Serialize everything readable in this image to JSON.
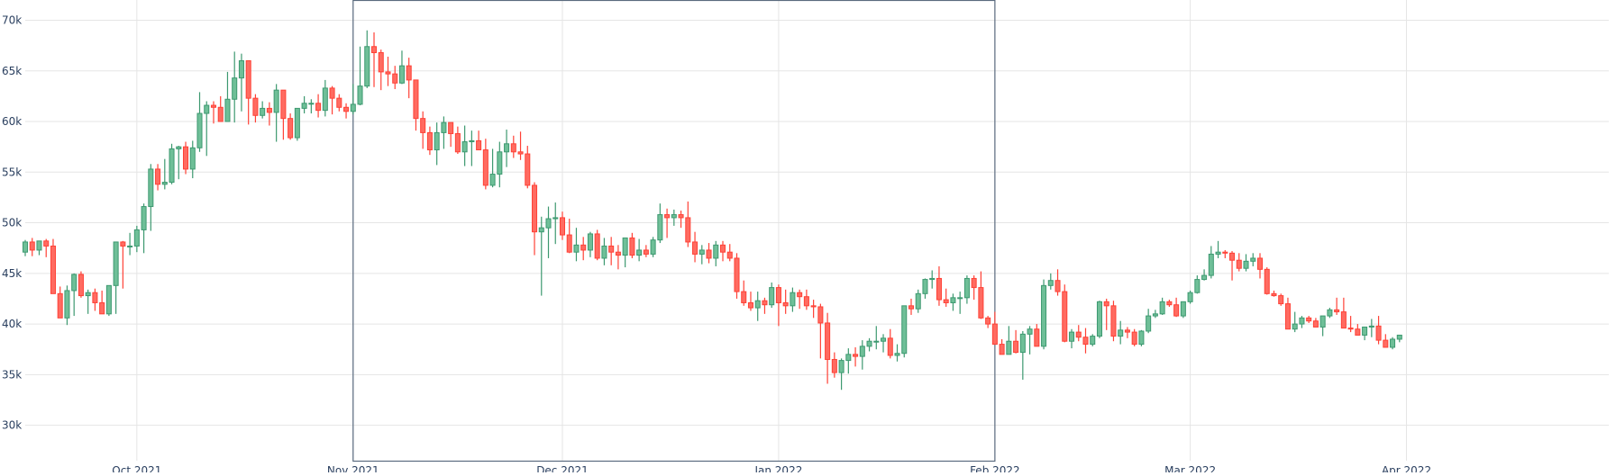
{
  "chart_data": {
    "type": "candlestick",
    "title": "",
    "xlabel": "",
    "ylabel": "",
    "x_range": [
      "2021-09-15",
      "2022-04-30"
    ],
    "ylim": [
      26500,
      72000
    ],
    "yticks": [
      30000,
      35000,
      40000,
      45000,
      50000,
      55000,
      60000,
      65000,
      70000
    ],
    "ytick_labels": [
      "30k",
      "35k",
      "40k",
      "45k",
      "50k",
      "55k",
      "60k",
      "65k",
      "70k"
    ],
    "xticks": [
      "2021-10-01",
      "2021-11-01",
      "2021-12-01",
      "2022-01-01",
      "2022-02-01",
      "2022-03-01",
      "2022-04-01"
    ],
    "xtick_labels": [
      "Oct 2021",
      "Nov 2021",
      "Dec 2021",
      "Jan 2022",
      "Feb 2022",
      "Mar 2022",
      "Apr 2022"
    ],
    "grid": true,
    "legend": false,
    "colors": {
      "increasing": "#3d9970",
      "decreasing": "#ff4136",
      "grid": "#e5e5e5",
      "highlight": "#5b6b7f"
    },
    "highlight_range": [
      "2021-11-01",
      "2022-02-01"
    ],
    "candles": {
      "start": "2021-09-15",
      "open": [
        47100,
        48100,
        47300,
        48200,
        47700,
        43000,
        40600,
        43300,
        44900,
        42800,
        43100,
        42100,
        41000,
        43800,
        48100,
        47700,
        47700,
        49300,
        51600,
        55300,
        53800,
        54000,
        57300,
        57500,
        55300,
        57400,
        60800,
        61600,
        61400,
        60000,
        62200,
        64300,
        66000,
        62300,
        60600,
        61300,
        60900,
        63100,
        60300,
        58400,
        61300,
        61800,
        61800,
        61100,
        63300,
        62300,
        61400,
        61000,
        61700,
        63500,
        67400,
        66800,
        64900,
        64700,
        63800,
        65500,
        64100,
        60300,
        58900,
        57200,
        58900,
        59900,
        58800,
        57000,
        58000,
        58100,
        57200,
        53700,
        54800,
        57000,
        57800,
        57000,
        56800,
        53700,
        49100,
        49500,
        50400,
        50500,
        48800,
        47100,
        47800,
        47300,
        48900,
        46500,
        47700,
        47100,
        46800,
        48500,
        46800,
        47300,
        46900,
        48300,
        50800,
        50500,
        50800,
        50500,
        48100,
        46900,
        47300,
        46500,
        47800,
        47100,
        46500,
        43200,
        42100,
        41600,
        42300,
        41900,
        43600,
        42100,
        41800,
        43100,
        42700,
        41800,
        41700,
        40100,
        36500,
        35200,
        36400,
        37000,
        36800,
        37800,
        38300,
        38300,
        38600,
        36900,
        37100,
        41800,
        41500,
        43000,
        44400,
        44500,
        42400,
        42100,
        42600,
        42600,
        44500,
        43600,
        40600,
        40000,
        38000,
        37000,
        38300,
        37200,
        39000,
        39500,
        37800,
        43800,
        44300,
        43200,
        38300,
        39200,
        38700,
        38000,
        38800,
        42200,
        41800,
        38800,
        39400,
        39200,
        38000,
        39300,
        40800,
        41000,
        42200,
        41900,
        40800,
        42200,
        43100,
        44400,
        44800,
        46900,
        47100,
        47000,
        46300,
        45500,
        46200,
        46500,
        45400,
        43000,
        42800,
        42000,
        39500,
        40000,
        40600,
        40300,
        39700,
        40800,
        41400,
        41200,
        39600,
        39500,
        38900,
        39700,
        39800,
        38400,
        37700,
        38500
      ],
      "high": [
        48300,
        48500,
        48000,
        48400,
        48400,
        43700,
        43800,
        45000,
        45200,
        43400,
        43500,
        43300,
        43500,
        44100,
        48200,
        49000,
        49700,
        51900,
        55800,
        55800,
        56300,
        57800,
        57600,
        58000,
        58100,
        62900,
        62000,
        62000,
        62500,
        64900,
        66900,
        66700,
        63200,
        62700,
        62000,
        61900,
        63700,
        63000,
        60800,
        60900,
        62500,
        62200,
        62700,
        64100,
        63500,
        62700,
        61800,
        63700,
        67400,
        69000,
        68800,
        67100,
        66400,
        65500,
        67000,
        66300,
        64000,
        61000,
        59500,
        59900,
        60500,
        59800,
        59500,
        59600,
        59100,
        59100,
        58300,
        57300,
        58000,
        59200,
        58600,
        59000,
        57600,
        54000,
        50600,
        51600,
        52000,
        51100,
        50400,
        49500,
        48600,
        49100,
        49300,
        48500,
        48600,
        47800,
        48500,
        49000,
        48400,
        47800,
        48600,
        51900,
        51400,
        51300,
        51200,
        52100,
        49100,
        47800,
        48000,
        48200,
        48200,
        47900,
        47000,
        44300,
        43200,
        43200,
        42600,
        44100,
        43900,
        43400,
        43600,
        43400,
        43400,
        42400,
        42000,
        41100,
        37200,
        36600,
        37600,
        37700,
        38400,
        38600,
        39800,
        39000,
        39500,
        38000,
        41700,
        42500,
        43400,
        44500,
        45300,
        45700,
        43500,
        43000,
        43200,
        44800,
        44800,
        45200,
        40800,
        41200,
        38500,
        39800,
        39400,
        39300,
        39800,
        40000,
        44400,
        45000,
        45400,
        43900,
        39500,
        39900,
        39600,
        39000,
        42300,
        42500,
        42300,
        40300,
        39700,
        39500,
        39400,
        41500,
        41400,
        42600,
        42400,
        42600,
        42000,
        43300,
        44800,
        45400,
        47700,
        48200,
        47300,
        47200,
        47000,
        46900,
        47000,
        47000,
        45600,
        43300,
        43000,
        42600,
        41200,
        40800,
        40800,
        40600,
        40600,
        41600,
        42600,
        42600,
        40800,
        40000,
        39600,
        40500,
        40800,
        39000,
        38700,
        38900
      ],
      "low": [
        46700,
        46700,
        46800,
        46600,
        46900,
        41600,
        39900,
        40800,
        42600,
        41000,
        41300,
        41800,
        40800,
        41000,
        43500,
        46800,
        47100,
        47000,
        49200,
        53200,
        53300,
        53800,
        54300,
        54800,
        54400,
        57000,
        56600,
        59800,
        60100,
        60200,
        59900,
        61000,
        59700,
        59900,
        60300,
        59600,
        58000,
        58200,
        58200,
        58100,
        60800,
        60800,
        60400,
        60500,
        60700,
        61000,
        60300,
        60700,
        61600,
        63300,
        63400,
        63100,
        63500,
        63200,
        63700,
        62300,
        59100,
        57300,
        56700,
        55700,
        57300,
        57500,
        56800,
        55600,
        55600,
        57300,
        53300,
        53500,
        53500,
        55500,
        56400,
        56200,
        53400,
        46800,
        42800,
        46500,
        47900,
        48300,
        47000,
        46200,
        46300,
        46600,
        46300,
        45800,
        45800,
        45400,
        45600,
        46500,
        46200,
        46600,
        46600,
        48000,
        48500,
        49700,
        49500,
        47600,
        46100,
        45900,
        46000,
        45700,
        46200,
        46200,
        42500,
        41800,
        41300,
        40300,
        41000,
        41600,
        39800,
        41000,
        41200,
        41500,
        41400,
        40600,
        36600,
        34100,
        34700,
        33500,
        35100,
        35800,
        35500,
        37300,
        37500,
        37200,
        36600,
        36300,
        36700,
        40900,
        41100,
        42500,
        43500,
        41800,
        41700,
        41300,
        41000,
        42000,
        42400,
        40500,
        39600,
        38900,
        37000,
        37000,
        37100,
        34500,
        37000,
        38500,
        37500,
        43400,
        42800,
        38200,
        37600,
        38300,
        37100,
        37800,
        38600,
        39400,
        38300,
        38000,
        38600,
        37800,
        37800,
        39100,
        40600,
        40900,
        41700,
        40700,
        40600,
        42000,
        43000,
        44300,
        44500,
        46500,
        46500,
        44300,
        45200,
        45200,
        45700,
        44500,
        42900,
        42700,
        41800,
        39500,
        39200,
        39600,
        40100,
        39700,
        38800,
        40600,
        40900,
        40000,
        39200,
        39200,
        38400,
        38700,
        38000,
        37700,
        37500,
        38200
      ],
      "close": [
        48100,
        47300,
        48200,
        47700,
        43000,
        40600,
        43300,
        44900,
        42800,
        43100,
        42100,
        41000,
        43800,
        48100,
        47700,
        47700,
        49300,
        51600,
        55300,
        53800,
        54000,
        57300,
        57500,
        55300,
        57400,
        60800,
        61600,
        61400,
        60000,
        62200,
        64300,
        66000,
        62300,
        60600,
        61300,
        60900,
        63100,
        60300,
        58400,
        61300,
        61800,
        61800,
        61100,
        63300,
        62300,
        61400,
        61000,
        61700,
        63500,
        67400,
        66800,
        64900,
        64700,
        63800,
        65500,
        64100,
        60300,
        58900,
        57200,
        58900,
        59900,
        58800,
        57000,
        58000,
        58100,
        57200,
        53700,
        54800,
        57000,
        57800,
        57000,
        56800,
        53700,
        49100,
        49500,
        50400,
        50500,
        48800,
        47100,
        47800,
        47300,
        48900,
        46500,
        47700,
        47100,
        46800,
        48500,
        46800,
        47300,
        46900,
        48300,
        50800,
        50500,
        50800,
        50500,
        48100,
        46900,
        47300,
        46500,
        47800,
        47100,
        46500,
        43200,
        42100,
        41600,
        42300,
        41900,
        43600,
        42100,
        41800,
        43100,
        42700,
        41800,
        41700,
        40100,
        36500,
        35200,
        36400,
        37000,
        36800,
        37800,
        38300,
        38300,
        38600,
        36900,
        37100,
        41800,
        41500,
        43000,
        44400,
        44500,
        42400,
        42100,
        42600,
        42600,
        44500,
        43600,
        40600,
        40000,
        38000,
        37000,
        38300,
        37200,
        39000,
        39500,
        37800,
        43800,
        44300,
        43200,
        38300,
        39200,
        38700,
        38000,
        38800,
        42200,
        41800,
        38800,
        39400,
        39200,
        38000,
        39300,
        40800,
        41000,
        42200,
        41900,
        40800,
        42200,
        43100,
        44400,
        44800,
        46900,
        47100,
        47000,
        46300,
        45500,
        46200,
        46500,
        45400,
        43000,
        42800,
        42000,
        39500,
        40000,
        40600,
        40300,
        39700,
        40800,
        41400,
        41200,
        39600,
        39500,
        38900,
        39700,
        39800,
        38400,
        37700,
        38500,
        38900
      ]
    }
  }
}
